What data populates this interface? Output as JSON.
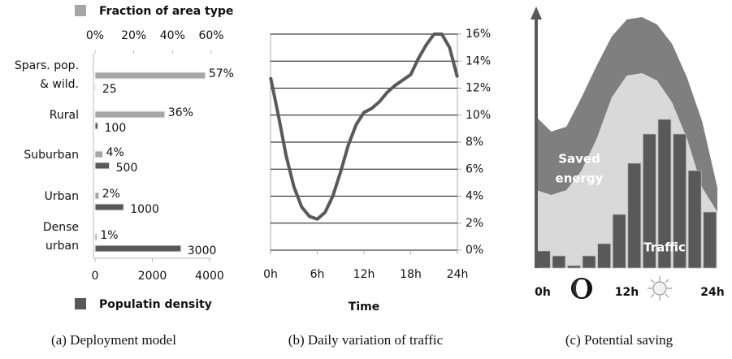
{
  "chart_data": [
    {
      "type": "hbar-dual",
      "categories": [
        [
          "Spars. pop.",
          "& wild."
        ],
        [
          "Rural"
        ],
        [
          "Suburban"
        ],
        [
          "Urban"
        ],
        [
          "Dense",
          "urban"
        ]
      ],
      "series": [
        {
          "name": "Fraction of area type",
          "color": "#a6a6a6",
          "values": [
            57,
            36,
            4,
            2,
            1
          ],
          "value_labels": [
            "57%",
            "36%",
            "4%",
            "2%",
            "1%"
          ],
          "axis": "x2"
        },
        {
          "name": "Populatin density",
          "color": "#595959",
          "values": [
            25,
            100,
            500,
            1000,
            3000
          ],
          "axis": "x"
        }
      ],
      "x2lim": [
        0,
        60
      ],
      "x2ticks": [
        {
          "value": 0,
          "label": "0%"
        },
        {
          "value": 20,
          "label": "20%"
        },
        {
          "value": 40,
          "label": "40%"
        },
        {
          "value": 60,
          "label": "60%"
        }
      ],
      "xlim": [
        0,
        4000
      ],
      "xticks": [
        0,
        2000,
        4000
      ],
      "caption": "(a) Deployment model"
    },
    {
      "type": "line",
      "x": [
        0,
        1,
        2,
        3,
        4,
        5,
        6,
        7,
        8,
        9,
        10,
        11,
        12,
        13,
        14,
        15,
        16,
        17,
        18,
        19,
        20,
        21,
        22,
        23,
        24
      ],
      "values": [
        12.8,
        10,
        7,
        4.7,
        3.2,
        2.5,
        2.3,
        2.8,
        4,
        5.8,
        7.8,
        9.3,
        10.2,
        10.5,
        11,
        11.7,
        12.2,
        12.6,
        13,
        14.2,
        15.2,
        16,
        16,
        15,
        12.8
      ],
      "color": "#595959",
      "xlim": [
        0,
        24
      ],
      "xticks": [
        {
          "value": 0,
          "label": "0h"
        },
        {
          "value": 6,
          "label": "6h"
        },
        {
          "value": 12,
          "label": "12h"
        },
        {
          "value": 18,
          "label": "18h"
        },
        {
          "value": 24,
          "label": "24h"
        }
      ],
      "ylim": [
        0,
        16
      ],
      "yticks": [
        {
          "value": 0,
          "label": "0%"
        },
        {
          "value": 2,
          "label": "2%"
        },
        {
          "value": 4,
          "label": "4%"
        },
        {
          "value": 6,
          "label": "6%"
        },
        {
          "value": 8,
          "label": "8%"
        },
        {
          "value": 10,
          "label": "10%"
        },
        {
          "value": 12,
          "label": "12%"
        },
        {
          "value": 14,
          "label": "14%"
        },
        {
          "value": 16,
          "label": "16%"
        }
      ],
      "grid": true,
      "x_label": "Time",
      "caption": "(b) Daily variation of traffic"
    },
    {
      "type": "area-bar",
      "areas": [
        {
          "color": "#7f7f7f",
          "x": [
            0,
            2,
            4,
            6,
            8,
            10,
            12,
            14,
            16,
            18,
            20,
            22,
            24
          ],
          "values": [
            62,
            56,
            58,
            70,
            83,
            95,
            102,
            103,
            100,
            92,
            78,
            60,
            33
          ]
        },
        {
          "color": "#d9d9d9",
          "x": [
            0,
            2,
            4,
            6,
            8,
            10,
            12,
            14,
            16,
            18,
            20,
            22,
            24
          ],
          "values": [
            32,
            30,
            32,
            40,
            53,
            70,
            79,
            80,
            77,
            68,
            53,
            33,
            23
          ]
        }
      ],
      "bars": {
        "color": "#595959",
        "x": [
          1,
          3,
          5,
          7,
          9,
          11,
          13,
          15,
          17,
          19,
          21,
          23
        ],
        "values": [
          7,
          5,
          1,
          5,
          10,
          22,
          43,
          55,
          61,
          55,
          40,
          23
        ]
      },
      "xlim": [
        0,
        24
      ],
      "ylim": [
        0,
        110
      ],
      "xticks": [
        {
          "value": 0,
          "label": "0h"
        },
        {
          "value": 12,
          "label": "12h"
        },
        {
          "value": 24,
          "label": "24h"
        }
      ],
      "annotations": [
        [
          "Saved",
          "energy"
        ],
        [
          "Traffic"
        ]
      ],
      "caption": "(c) Potential saving"
    }
  ]
}
